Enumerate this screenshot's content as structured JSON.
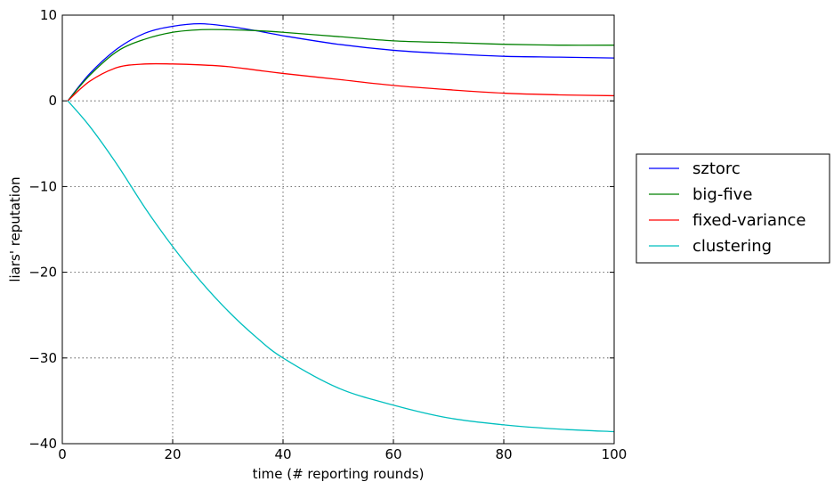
{
  "chart_data": {
    "type": "line",
    "xlabel": "time (# reporting rounds)",
    "ylabel": "liars' reputation",
    "xlim": [
      0,
      100
    ],
    "ylim": [
      -40,
      10
    ],
    "xticks": [
      0,
      20,
      40,
      60,
      80,
      100
    ],
    "yticks": [
      10,
      0,
      -10,
      -20,
      -30,
      -40
    ],
    "xtick_labels": [
      "0",
      "20",
      "40",
      "60",
      "80",
      "100"
    ],
    "ytick_labels": [
      "10",
      "0",
      "−10",
      "−20",
      "−30",
      "−40"
    ],
    "grid": true,
    "legend_position": "outside-right",
    "x": [
      1,
      5,
      10,
      15,
      20,
      25,
      30,
      35,
      40,
      50,
      60,
      70,
      80,
      90,
      100
    ],
    "series": [
      {
        "name": "sztorc",
        "color": "#0000ff",
        "values": [
          0,
          3.2,
          6.1,
          7.9,
          8.7,
          9.0,
          8.7,
          8.2,
          7.6,
          6.6,
          5.9,
          5.5,
          5.2,
          5.1,
          5.0
        ]
      },
      {
        "name": "big-five",
        "color": "#008000",
        "values": [
          0,
          3.0,
          5.8,
          7.2,
          8.0,
          8.3,
          8.3,
          8.2,
          8.0,
          7.5,
          7.0,
          6.8,
          6.6,
          6.5,
          6.5
        ]
      },
      {
        "name": "fixed-variance",
        "color": "#ff0000",
        "values": [
          0,
          2.3,
          3.9,
          4.3,
          4.3,
          4.2,
          4.0,
          3.6,
          3.2,
          2.5,
          1.8,
          1.3,
          0.9,
          0.7,
          0.6
        ]
      },
      {
        "name": "clustering",
        "color": "#00bfbf",
        "values": [
          0,
          -3.0,
          -7.5,
          -12.5,
          -17.0,
          -21.0,
          -24.5,
          -27.5,
          -30.0,
          -33.5,
          -35.5,
          -37.0,
          -37.8,
          -38.3,
          -38.6
        ]
      }
    ]
  }
}
